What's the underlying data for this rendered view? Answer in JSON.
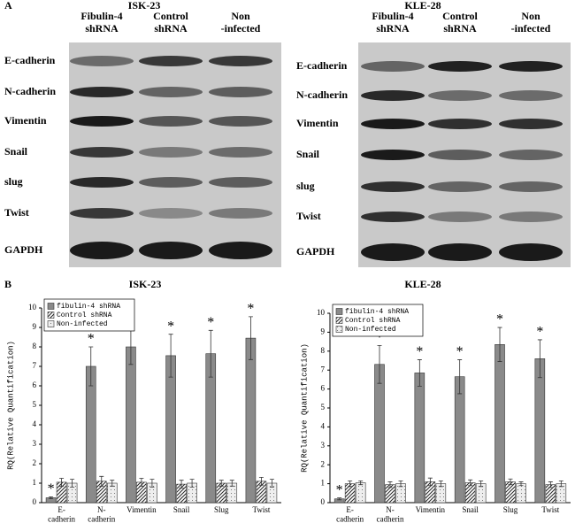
{
  "panel_labels": [
    "A",
    "B"
  ],
  "blots": [
    {
      "title": "ISK-23",
      "lanes": [
        "Fibulin-4\nshRNA",
        "Control\nshRNA",
        "Non\n-infected"
      ],
      "rows": [
        "E-cadherin",
        "N-cadherin",
        "Vimentin",
        "Snail",
        "slug",
        "Twist",
        "GAPDH"
      ]
    },
    {
      "title": "KLE-28",
      "lanes": [
        "Fibulin-4\nshRNA",
        "Control\nshRNA",
        "Non\n-infected"
      ],
      "rows": [
        "E-cadherin",
        "N-cadherin",
        "Vimentin",
        "Snail",
        "slug",
        "Twist",
        "GAPDH"
      ]
    }
  ],
  "chart_data": [
    {
      "type": "bar",
      "title": "ISK-23",
      "y_label": "RQ(Relative Quantification)",
      "categories": [
        "E-\ncadherin",
        "N-\ncadherin",
        "Vimentin",
        "Snail",
        "Slug",
        "Twist"
      ],
      "series": [
        {
          "name": "fibulin-4 shRNA",
          "color": "#8a8a8a",
          "hatch": "none",
          "values": [
            0.25,
            7.0,
            8.0,
            7.55,
            7.65,
            8.45
          ],
          "errors": [
            0.05,
            1.0,
            0.9,
            1.1,
            1.2,
            1.1
          ]
        },
        {
          "name": "Control shRNA",
          "color": "#ffffff",
          "hatch": "diagonal",
          "values": [
            1.05,
            1.1,
            1.05,
            0.95,
            1.0,
            1.1
          ],
          "errors": [
            0.2,
            0.25,
            0.2,
            0.2,
            0.15,
            0.2
          ]
        },
        {
          "name": "Non-infected",
          "color": "#eeeeee",
          "hatch": "dots",
          "values": [
            1.0,
            1.0,
            1.0,
            1.0,
            1.0,
            1.0
          ],
          "errors": [
            0.2,
            0.15,
            0.2,
            0.2,
            0.15,
            0.2
          ]
        }
      ],
      "significance": [
        "*",
        "*",
        "*",
        "*",
        "*",
        "*"
      ],
      "ylim": [
        0,
        10
      ],
      "yticks": [
        0,
        1,
        2,
        3,
        4,
        5,
        6,
        7,
        8,
        9,
        10
      ],
      "legend": "upper left"
    },
    {
      "type": "bar",
      "title": "KLE-28",
      "y_label": "RQ(Relative Quantification)",
      "categories": [
        "E-\ncadherin",
        "N-\ncadherin",
        "Vimentin",
        "Snail",
        "Slug",
        "Twist"
      ],
      "series": [
        {
          "name": "fibulin-4 shRNA",
          "color": "#8a8a8a",
          "hatch": "none",
          "values": [
            0.2,
            7.3,
            6.85,
            6.65,
            8.35,
            7.6
          ],
          "errors": [
            0.05,
            1.0,
            0.7,
            0.9,
            0.9,
            1.0
          ]
        },
        {
          "name": "Control shRNA",
          "color": "#ffffff",
          "hatch": "diagonal",
          "values": [
            1.0,
            0.95,
            1.1,
            1.05,
            1.1,
            0.95
          ],
          "errors": [
            0.15,
            0.15,
            0.2,
            0.15,
            0.15,
            0.15
          ]
        },
        {
          "name": "Non-infected",
          "color": "#eeeeee",
          "hatch": "dots",
          "values": [
            1.05,
            1.0,
            1.0,
            1.0,
            1.0,
            1.0
          ],
          "errors": [
            0.1,
            0.15,
            0.15,
            0.15,
            0.1,
            0.15
          ]
        }
      ],
      "significance": [
        "*",
        "*",
        "*",
        "*",
        "*",
        "*"
      ],
      "ylim": [
        0,
        10
      ],
      "yticks": [
        0,
        1,
        2,
        3,
        4,
        5,
        6,
        7,
        8,
        9,
        10
      ],
      "legend": "upper left"
    }
  ]
}
